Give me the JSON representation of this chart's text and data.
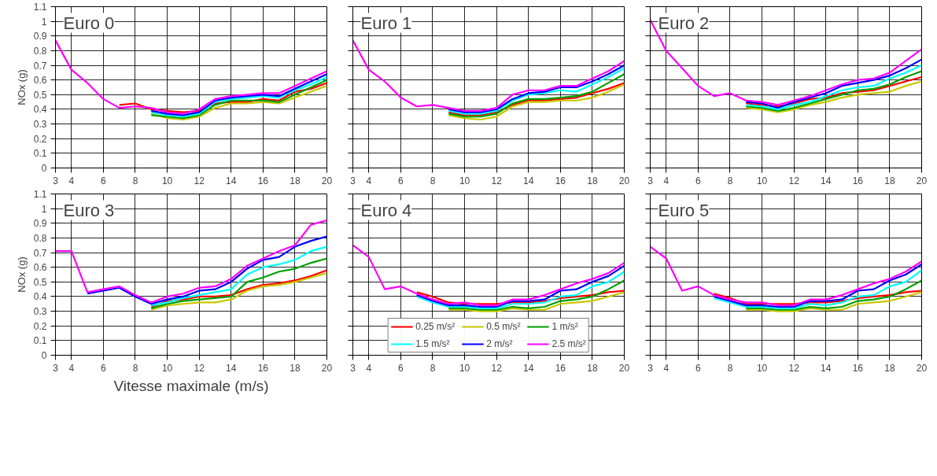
{
  "chart_data": [
    {
      "type": "line",
      "title": "Euro 0",
      "ylabel": "NOx (g)",
      "x": [
        3,
        4,
        5,
        6,
        7,
        8,
        9,
        10,
        11,
        12,
        13,
        14,
        15,
        16,
        17,
        18,
        19,
        20
      ],
      "xlim": [
        3,
        20
      ],
      "xticks": [
        3,
        4,
        6,
        8,
        10,
        12,
        14,
        16,
        18,
        20
      ],
      "ylim": [
        0,
        1.1
      ],
      "yticks": [
        0,
        0.1,
        0.2,
        0.3,
        0.4,
        0.5,
        0.6,
        0.7,
        0.8,
        0.9,
        1,
        1.1
      ],
      "grid": true,
      "series": [
        {
          "color": "#ff0000",
          "values": [
            null,
            null,
            null,
            null,
            0.43,
            0.44,
            0.4,
            0.39,
            0.38,
            0.39,
            0.44,
            0.45,
            0.45,
            0.47,
            0.46,
            0.52,
            0.54,
            0.58
          ]
        },
        {
          "color": "#c8c800",
          "values": [
            null,
            null,
            null,
            null,
            null,
            null,
            0.37,
            0.34,
            0.33,
            0.35,
            0.41,
            0.44,
            0.44,
            0.45,
            0.44,
            0.48,
            0.52,
            0.56
          ]
        },
        {
          "color": "#00a000",
          "values": [
            null,
            null,
            null,
            null,
            null,
            null,
            0.36,
            0.35,
            0.34,
            0.36,
            0.43,
            0.46,
            0.46,
            0.46,
            0.45,
            0.5,
            0.55,
            0.6
          ]
        },
        {
          "color": "#00ffff",
          "values": [
            null,
            null,
            null,
            null,
            null,
            null,
            0.38,
            0.36,
            0.35,
            0.37,
            0.45,
            0.47,
            0.48,
            0.49,
            0.48,
            0.53,
            0.57,
            0.62
          ]
        },
        {
          "color": "#0000ff",
          "values": [
            null,
            null,
            null,
            null,
            null,
            null,
            0.39,
            0.37,
            0.36,
            0.38,
            0.46,
            0.48,
            0.49,
            0.5,
            0.49,
            0.54,
            0.59,
            0.64
          ]
        },
        {
          "color": "#ff00ff",
          "values": [
            0.87,
            0.67,
            0.58,
            0.47,
            0.41,
            0.42,
            0.41,
            0.38,
            0.37,
            0.4,
            0.47,
            0.49,
            0.5,
            0.51,
            0.51,
            0.56,
            0.61,
            0.66
          ]
        }
      ]
    },
    {
      "type": "line",
      "title": "Euro 1",
      "x": [
        3,
        4,
        5,
        6,
        7,
        8,
        9,
        10,
        11,
        12,
        13,
        14,
        15,
        16,
        17,
        18,
        19,
        20
      ],
      "xlim": [
        3,
        20
      ],
      "xticks": [
        3,
        4,
        6,
        8,
        10,
        12,
        14,
        16,
        18,
        20
      ],
      "ylim": [
        0,
        1.1
      ],
      "yticks": [
        0,
        0.1,
        0.2,
        0.3,
        0.4,
        0.5,
        0.6,
        0.7,
        0.8,
        0.9,
        1,
        1.1
      ],
      "grid": true,
      "tick_labels": "x",
      "series": [
        {
          "color": "#ff0000",
          "values": [
            null,
            null,
            null,
            null,
            null,
            null,
            0.38,
            0.36,
            0.36,
            0.38,
            0.43,
            0.46,
            0.46,
            0.47,
            0.48,
            0.51,
            0.54,
            0.58
          ]
        },
        {
          "color": "#c8c800",
          "values": [
            null,
            null,
            null,
            null,
            null,
            null,
            0.36,
            0.34,
            0.33,
            0.35,
            0.42,
            0.45,
            0.45,
            0.46,
            0.46,
            0.48,
            0.52,
            0.57
          ]
        },
        {
          "color": "#00a000",
          "values": [
            null,
            null,
            null,
            null,
            null,
            null,
            0.37,
            0.35,
            0.35,
            0.37,
            0.44,
            0.47,
            0.47,
            0.48,
            0.49,
            0.52,
            0.58,
            0.64
          ]
        },
        {
          "color": "#00ffff",
          "values": [
            null,
            null,
            null,
            null,
            null,
            null,
            0.39,
            0.37,
            0.37,
            0.39,
            0.46,
            0.5,
            0.51,
            0.53,
            0.52,
            0.57,
            0.62,
            0.68
          ]
        },
        {
          "color": "#0000ff",
          "values": [
            null,
            null,
            null,
            null,
            null,
            null,
            0.4,
            0.38,
            0.38,
            0.4,
            0.47,
            0.51,
            0.52,
            0.55,
            0.55,
            0.59,
            0.64,
            0.7
          ]
        },
        {
          "color": "#ff00ff",
          "values": [
            0.87,
            0.67,
            0.59,
            0.48,
            0.42,
            0.43,
            0.41,
            0.39,
            0.39,
            0.41,
            0.5,
            0.53,
            0.53,
            0.56,
            0.56,
            0.61,
            0.66,
            0.73
          ]
        }
      ]
    },
    {
      "type": "line",
      "title": "Euro 2",
      "x": [
        3,
        4,
        5,
        6,
        7,
        8,
        9,
        10,
        11,
        12,
        13,
        14,
        15,
        16,
        17,
        18,
        19,
        20
      ],
      "xlim": [
        3,
        20
      ],
      "xticks": [
        3,
        4,
        6,
        8,
        10,
        12,
        14,
        16,
        18,
        20
      ],
      "ylim": [
        0,
        1.1
      ],
      "yticks": [
        0,
        0.1,
        0.2,
        0.3,
        0.4,
        0.5,
        0.6,
        0.7,
        0.8,
        0.9,
        1,
        1.1
      ],
      "grid": true,
      "tick_labels": "x",
      "series": [
        {
          "color": "#ff0000",
          "values": [
            null,
            null,
            null,
            null,
            null,
            null,
            0.44,
            0.43,
            0.42,
            0.44,
            0.47,
            0.48,
            0.51,
            0.52,
            0.53,
            0.56,
            0.59,
            0.62
          ]
        },
        {
          "color": "#c8c800",
          "values": [
            null,
            null,
            null,
            null,
            null,
            null,
            0.41,
            0.4,
            0.38,
            0.4,
            0.43,
            0.45,
            0.48,
            0.5,
            0.51,
            0.52,
            0.56,
            0.59
          ]
        },
        {
          "color": "#00a000",
          "values": [
            null,
            null,
            null,
            null,
            null,
            null,
            0.42,
            0.41,
            0.39,
            0.41,
            0.44,
            0.47,
            0.5,
            0.53,
            0.54,
            0.57,
            0.62,
            0.66
          ]
        },
        {
          "color": "#00ffff",
          "values": [
            null,
            null,
            null,
            null,
            null,
            null,
            0.43,
            0.42,
            0.4,
            0.43,
            0.45,
            0.49,
            0.53,
            0.55,
            0.56,
            0.61,
            0.65,
            0.7
          ]
        },
        {
          "color": "#0000ff",
          "values": [
            null,
            null,
            null,
            null,
            null,
            null,
            0.45,
            0.44,
            0.41,
            0.45,
            0.48,
            0.51,
            0.56,
            0.58,
            0.6,
            0.63,
            0.68,
            0.74
          ]
        },
        {
          "color": "#ff00ff",
          "values": [
            1.01,
            0.8,
            0.68,
            0.56,
            0.49,
            0.51,
            0.46,
            0.45,
            0.43,
            0.46,
            0.49,
            0.53,
            0.57,
            0.6,
            0.61,
            0.65,
            0.73,
            0.81
          ]
        }
      ]
    },
    {
      "type": "line",
      "title": "Euro 3",
      "xlabel": "Vitesse maximale (m/s)",
      "ylabel": "NOx (g)",
      "x": [
        3,
        4,
        5,
        6,
        7,
        8,
        9,
        10,
        11,
        12,
        13,
        14,
        15,
        16,
        17,
        18,
        19,
        20
      ],
      "xlim": [
        3,
        20
      ],
      "xticks": [
        3,
        4,
        6,
        8,
        10,
        12,
        14,
        16,
        18,
        20
      ],
      "ylim": [
        0,
        1.1
      ],
      "yticks": [
        0,
        0.1,
        0.2,
        0.3,
        0.4,
        0.5,
        0.6,
        0.7,
        0.8,
        0.9,
        1,
        1.1
      ],
      "grid": true,
      "series": [
        {
          "color": "#ff0000",
          "values": [
            null,
            null,
            null,
            null,
            null,
            null,
            0.33,
            0.37,
            0.38,
            0.4,
            0.4,
            0.41,
            0.45,
            0.48,
            0.49,
            0.51,
            0.54,
            0.58
          ]
        },
        {
          "color": "#c8c800",
          "values": [
            null,
            null,
            null,
            null,
            null,
            null,
            0.31,
            0.34,
            0.35,
            0.36,
            0.36,
            0.38,
            0.44,
            0.47,
            0.48,
            0.5,
            0.53,
            0.56
          ]
        },
        {
          "color": "#00a000",
          "values": [
            null,
            null,
            null,
            null,
            null,
            null,
            0.32,
            0.35,
            0.37,
            0.38,
            0.39,
            0.4,
            0.5,
            0.53,
            0.57,
            0.59,
            0.63,
            0.66
          ]
        },
        {
          "color": "#00ffff",
          "values": [
            null,
            null,
            null,
            null,
            null,
            null,
            0.34,
            0.36,
            0.39,
            0.41,
            0.43,
            0.45,
            0.55,
            0.6,
            0.62,
            0.65,
            0.71,
            0.74
          ]
        },
        {
          "color": "#0000ff",
          "values": [
            null,
            null,
            0.42,
            0.44,
            0.46,
            0.4,
            0.35,
            0.38,
            0.4,
            0.44,
            0.45,
            0.5,
            0.59,
            0.65,
            0.67,
            0.74,
            0.78,
            0.81
          ]
        },
        {
          "color": "#ff00ff",
          "values": [
            0.71,
            0.71,
            0.43,
            0.45,
            0.47,
            0.41,
            0.36,
            0.4,
            0.42,
            0.46,
            0.47,
            0.52,
            0.61,
            0.66,
            0.71,
            0.75,
            0.89,
            0.92
          ]
        }
      ]
    },
    {
      "type": "line",
      "title": "Euro 4",
      "x": [
        3,
        4,
        5,
        6,
        7,
        8,
        9,
        10,
        11,
        12,
        13,
        14,
        15,
        16,
        17,
        18,
        19,
        20
      ],
      "xlim": [
        3,
        20
      ],
      "xticks": [
        3,
        4,
        6,
        8,
        10,
        12,
        14,
        16,
        18,
        20
      ],
      "ylim": [
        0,
        1.1
      ],
      "yticks": [
        0,
        0.1,
        0.2,
        0.3,
        0.4,
        0.5,
        0.6,
        0.7,
        0.8,
        0.9,
        1,
        1.1
      ],
      "grid": true,
      "tick_labels": "x",
      "legend": "bottom",
      "series": [
        {
          "name": "0.25 m/s²",
          "color": "#ff0000",
          "values": [
            null,
            null,
            null,
            null,
            0.43,
            0.4,
            0.36,
            0.35,
            0.35,
            0.35,
            0.36,
            0.36,
            0.37,
            0.39,
            0.4,
            0.41,
            0.43,
            0.44
          ]
        },
        {
          "name": "0.5 m/s²",
          "color": "#c8c800",
          "values": [
            null,
            null,
            null,
            null,
            null,
            null,
            0.31,
            0.31,
            0.3,
            0.3,
            0.32,
            0.31,
            0.31,
            0.35,
            0.36,
            0.37,
            0.4,
            0.43
          ]
        },
        {
          "name": "1 m/s²",
          "color": "#00a000",
          "values": [
            null,
            null,
            null,
            null,
            null,
            null,
            0.32,
            0.32,
            0.31,
            0.31,
            0.33,
            0.32,
            0.33,
            0.37,
            0.38,
            0.4,
            0.45,
            0.51
          ]
        },
        {
          "name": "1.5 m/s²",
          "color": "#00ffff",
          "values": [
            null,
            null,
            null,
            null,
            0.4,
            0.36,
            0.33,
            0.33,
            0.32,
            0.32,
            0.35,
            0.35,
            0.36,
            0.4,
            0.41,
            0.47,
            0.5,
            0.57
          ]
        },
        {
          "name": "2 m/s²",
          "color": "#0000ff",
          "values": [
            null,
            null,
            null,
            null,
            0.41,
            0.37,
            0.34,
            0.34,
            0.33,
            0.33,
            0.37,
            0.37,
            0.38,
            0.44,
            0.45,
            0.5,
            0.54,
            0.61
          ]
        },
        {
          "name": "2.5 m/s²",
          "color": "#ff00ff",
          "values": [
            0.75,
            0.67,
            0.45,
            0.47,
            0.42,
            0.38,
            0.35,
            0.36,
            0.34,
            0.34,
            0.38,
            0.38,
            0.41,
            0.45,
            0.49,
            0.52,
            0.56,
            0.63
          ]
        }
      ]
    },
    {
      "type": "line",
      "title": "Euro 5",
      "x": [
        3,
        4,
        5,
        6,
        7,
        8,
        9,
        10,
        11,
        12,
        13,
        14,
        15,
        16,
        17,
        18,
        19,
        20
      ],
      "xlim": [
        3,
        20
      ],
      "xticks": [
        3,
        4,
        6,
        8,
        10,
        12,
        14,
        16,
        18,
        20
      ],
      "ylim": [
        0,
        1.1
      ],
      "yticks": [
        0,
        0.1,
        0.2,
        0.3,
        0.4,
        0.5,
        0.6,
        0.7,
        0.8,
        0.9,
        1,
        1.1
      ],
      "grid": true,
      "tick_labels": "x",
      "series": [
        {
          "color": "#ff0000",
          "values": [
            null,
            null,
            null,
            null,
            0.42,
            0.39,
            0.35,
            0.35,
            0.35,
            0.35,
            0.36,
            0.36,
            0.37,
            0.39,
            0.4,
            0.41,
            0.43,
            0.44
          ]
        },
        {
          "color": "#c8c800",
          "values": [
            null,
            null,
            null,
            null,
            null,
            null,
            0.31,
            0.31,
            0.3,
            0.3,
            0.32,
            0.31,
            0.31,
            0.35,
            0.36,
            0.37,
            0.4,
            0.43
          ]
        },
        {
          "color": "#00a000",
          "values": [
            null,
            null,
            null,
            null,
            null,
            null,
            0.32,
            0.32,
            0.31,
            0.31,
            0.33,
            0.32,
            0.33,
            0.37,
            0.38,
            0.4,
            0.45,
            0.51
          ]
        },
        {
          "color": "#00ffff",
          "values": [
            null,
            null,
            null,
            null,
            0.39,
            0.36,
            0.33,
            0.33,
            0.32,
            0.32,
            0.35,
            0.34,
            0.36,
            0.4,
            0.41,
            0.47,
            0.5,
            0.58
          ]
        },
        {
          "color": "#0000ff",
          "values": [
            null,
            null,
            null,
            null,
            0.4,
            0.37,
            0.34,
            0.34,
            0.33,
            0.33,
            0.37,
            0.37,
            0.38,
            0.44,
            0.45,
            0.51,
            0.55,
            0.62
          ]
        },
        {
          "color": "#ff00ff",
          "values": [
            0.74,
            0.66,
            0.44,
            0.47,
            0.41,
            0.38,
            0.36,
            0.36,
            0.34,
            0.34,
            0.38,
            0.38,
            0.41,
            0.45,
            0.49,
            0.52,
            0.57,
            0.64
          ]
        }
      ]
    }
  ]
}
